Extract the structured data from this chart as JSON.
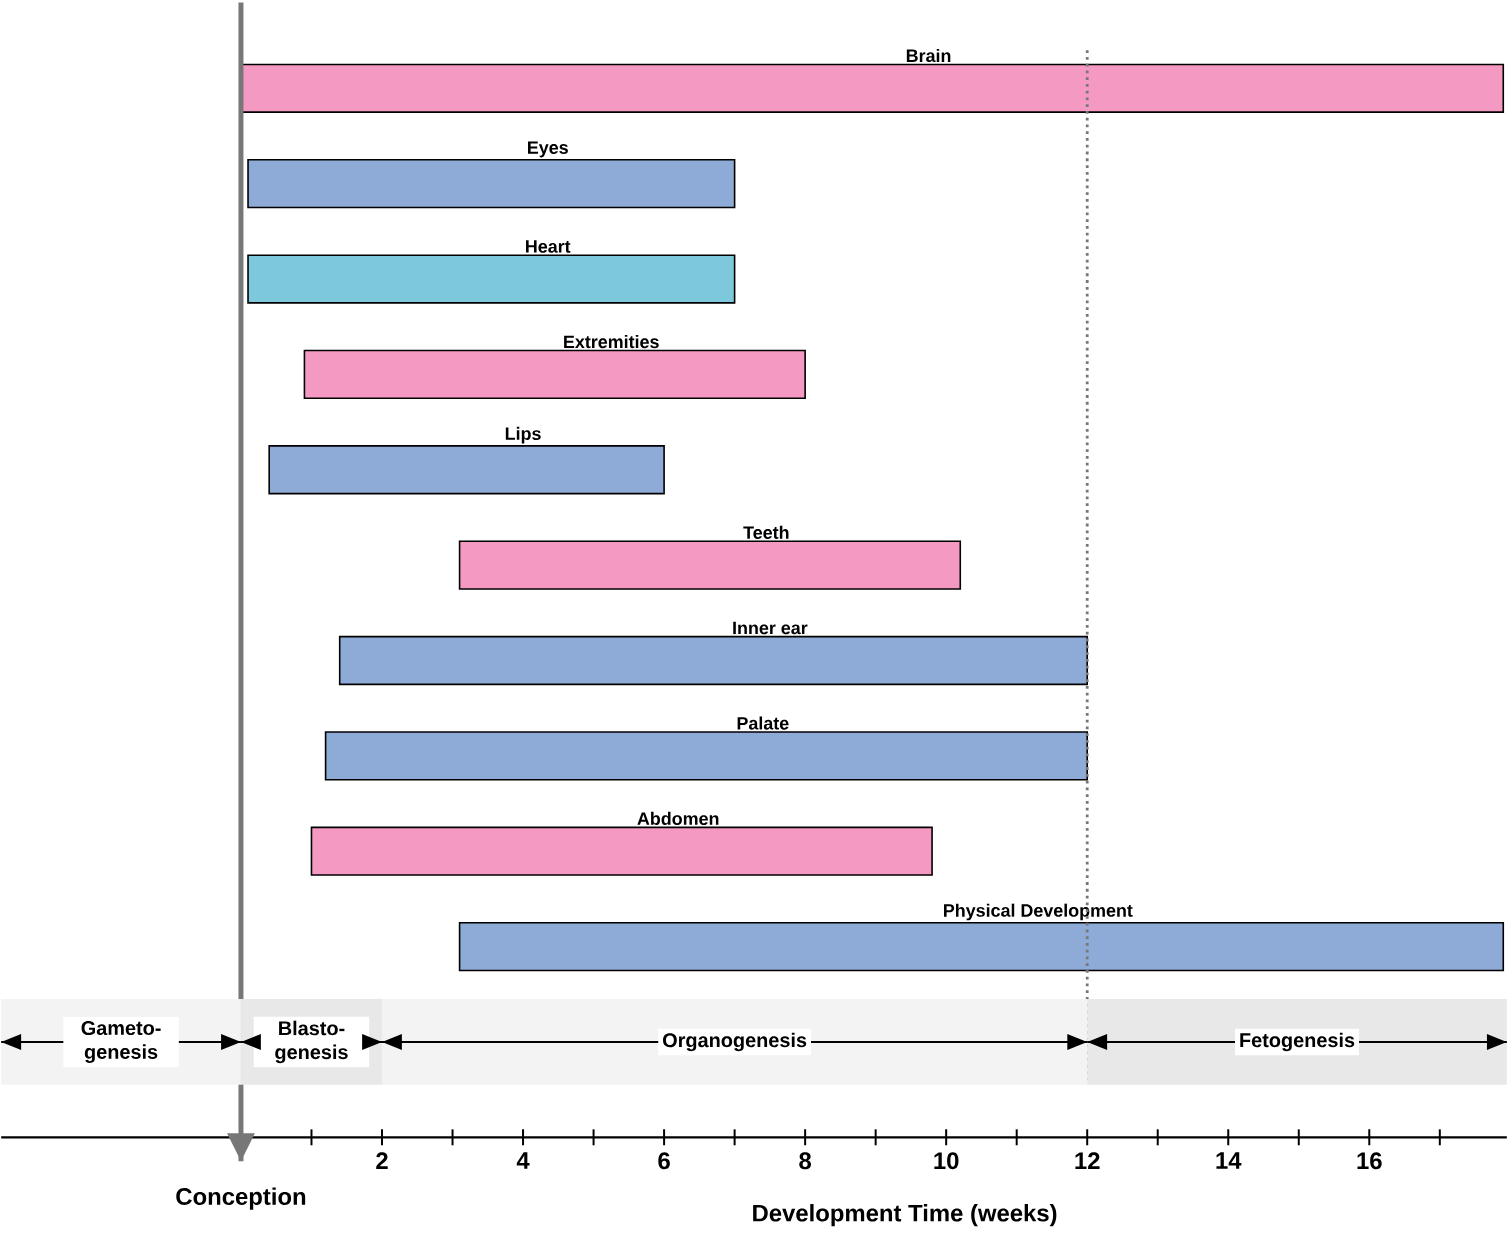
{
  "chart_data": {
    "type": "bar",
    "orientation": "horizontal",
    "xlabel": "Development Time (weeks)",
    "categories": [
      "Brain",
      "Eyes",
      "Heart",
      "Extremities",
      "Lips",
      "Teeth",
      "Inner ear",
      "Palate",
      "Abdomen",
      "Physical Development"
    ],
    "base": [
      0,
      0.1,
      0.1,
      0.9,
      0.4,
      3.1,
      1.4,
      1.2,
      1.0,
      3.1
    ],
    "values": [
      17.9,
      6.9,
      6.9,
      7.1,
      5.6,
      7.1,
      10.6,
      10.8,
      8.8,
      14.8
    ],
    "colors": [
      "#f49ac2",
      "#8eaad6",
      "#7ec8dc",
      "#f49ac2",
      "#8eaad6",
      "#f49ac2",
      "#8eaad6",
      "#8eaad6",
      "#f49ac2",
      "#8eaad6"
    ],
    "xlim": [
      -3.4,
      17.95
    ],
    "xticks": [
      {
        "value": 0,
        "label": null
      },
      2,
      4,
      6,
      8,
      10,
      12,
      14,
      16
    ],
    "tick_labels": "x",
    "ref_lines": [
      {
        "axis": "x",
        "value": 0,
        "label": "Conception",
        "line_style": "solid",
        "color": "#777777"
      },
      {
        "axis": "x",
        "value": 12,
        "line_style": "dotted",
        "color": "#777777"
      }
    ],
    "bands": [
      {
        "axis": "x",
        "from": -3.4,
        "to": 0,
        "label": "Gameto- genesis",
        "color": "#f3f3f3"
      },
      {
        "axis": "x",
        "from": 0,
        "to": 2,
        "label": "Blasto- genesis",
        "color": "#e8e8e8"
      },
      {
        "axis": "x",
        "from": 2,
        "to": 12,
        "label": "Organogenesis",
        "color": "#f3f3f3"
      },
      {
        "axis": "x",
        "from": 12,
        "to": 17.95,
        "label": "Fetogenesis",
        "color": "#e8e8e8"
      }
    ]
  }
}
